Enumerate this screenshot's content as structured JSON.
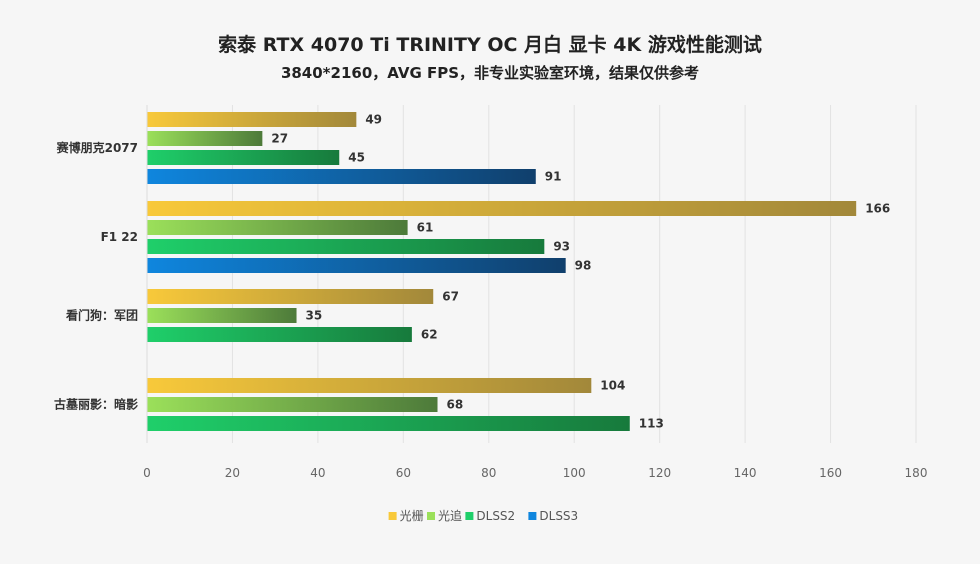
{
  "chart_data": {
    "type": "bar",
    "orientation": "horizontal",
    "title": "索泰 RTX 4070 Ti TRINITY OC 月白 显卡 4K 游戏性能测试",
    "subtitle": "3840*2160，AVG FPS，非专业实验室环境，结果仅供参考",
    "categories": [
      "赛博朋克2077",
      "F1 22",
      "看门狗：军团",
      "古墓丽影：暗影"
    ],
    "series": [
      {
        "name": "光栅",
        "values": [
          49,
          166,
          67,
          104
        ],
        "color_start": "#f8c93a",
        "color_end": "#a2883a"
      },
      {
        "name": "光追",
        "values": [
          27,
          61,
          35,
          68
        ],
        "color_start": "#9be05a",
        "color_end": "#4d7a3a"
      },
      {
        "name": "DLSS2",
        "values": [
          45,
          93,
          62,
          113
        ],
        "color_start": "#1fcf6a",
        "color_end": "#177a3c"
      },
      {
        "name": "DLSS3",
        "values": [
          91,
          98,
          null,
          null
        ],
        "color_start": "#0f86de",
        "color_end": "#103f6c"
      }
    ],
    "xlim": [
      0,
      180
    ],
    "xticks": [
      0,
      20,
      40,
      60,
      80,
      100,
      120,
      140,
      160,
      180
    ],
    "xlabel": "",
    "ylabel": "",
    "legend_position": "bottom-center",
    "grid": true
  }
}
